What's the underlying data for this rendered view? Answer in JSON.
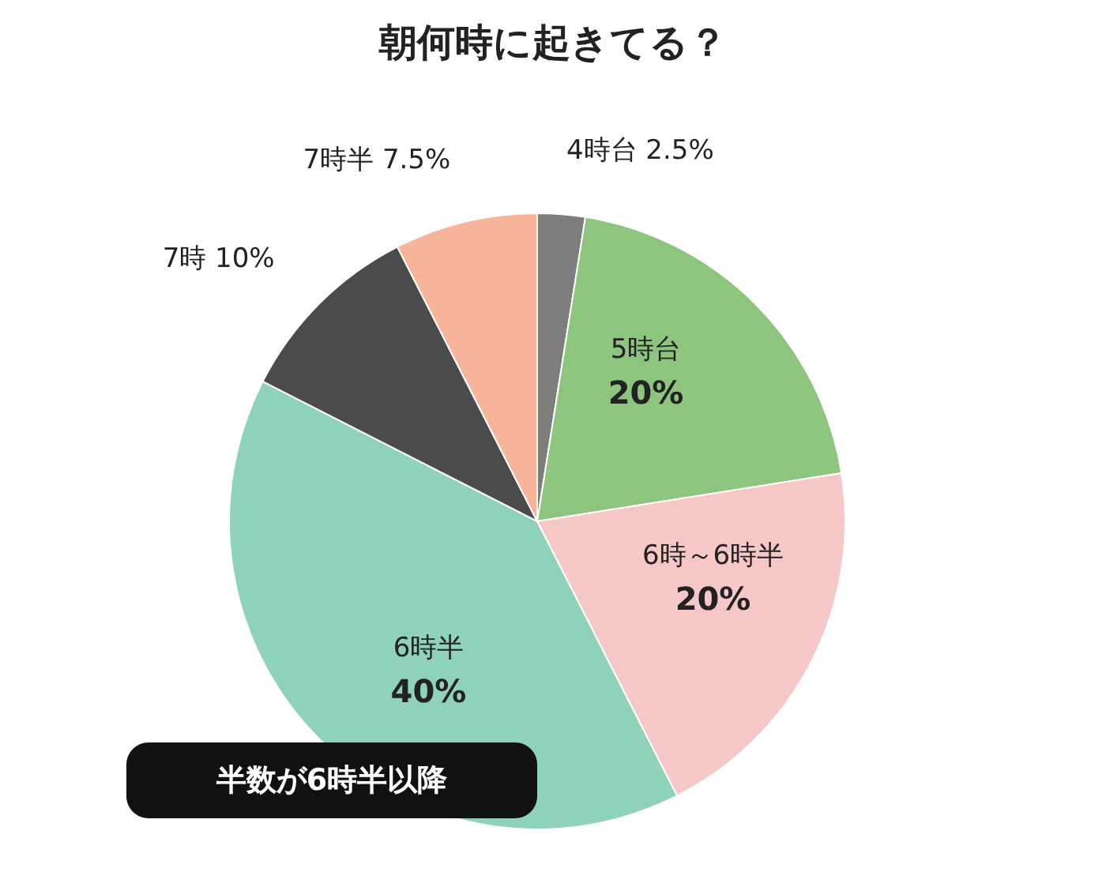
{
  "chart_data": {
    "type": "pie",
    "title": "朝何時に起きてる？",
    "categories": [
      "4時台",
      "5時台",
      "6時～6時半",
      "6時半",
      "7時",
      "7時半"
    ],
    "values": [
      2.5,
      20,
      20,
      40,
      10,
      7.5
    ],
    "value_labels": [
      "2.5%",
      "20%",
      "20%",
      "40%",
      "10%",
      "7.5%"
    ],
    "colors": [
      "#7d7d7b",
      "#8dc57f",
      "#f5c7c6",
      "#8fd2ba",
      "#4b4b4b",
      "#f6b49b"
    ],
    "annotations": [
      "半数が6時半以降"
    ],
    "legend": false
  }
}
